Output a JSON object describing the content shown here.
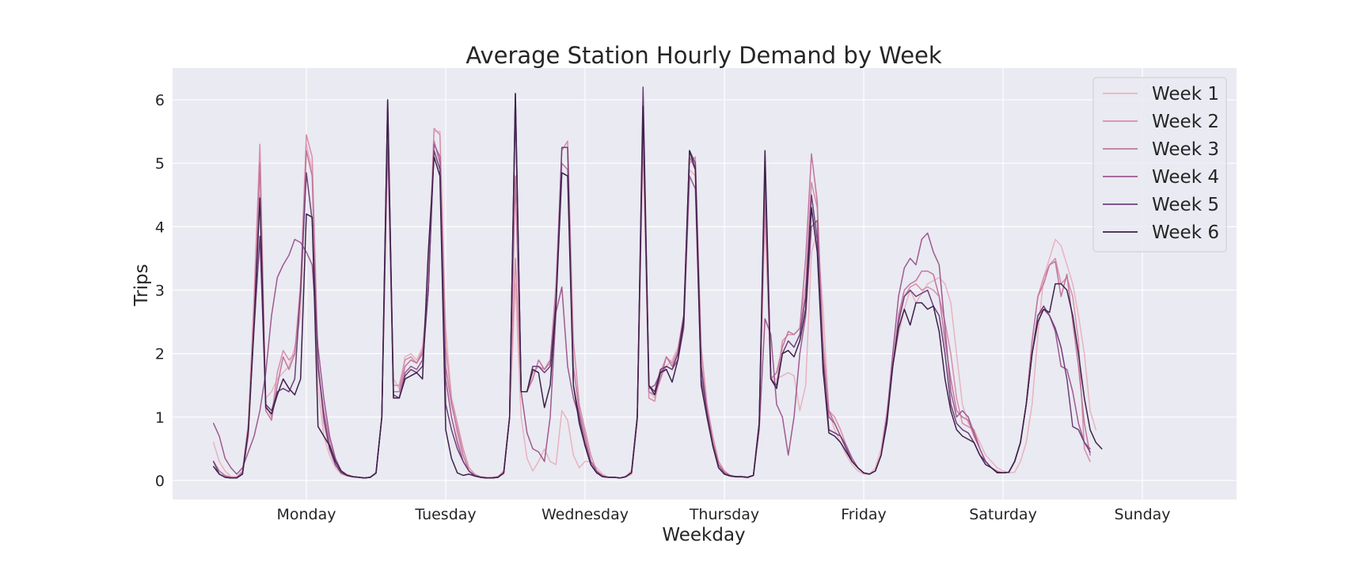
{
  "chart_data": {
    "type": "line",
    "title": "Average Station Hourly Demand by Week",
    "xlabel": "Weekday",
    "ylabel": "Trips",
    "x_tick_labels": [
      "Monday",
      "Tuesday",
      "Wednesday",
      "Thursday",
      "Friday",
      "Saturday",
      "Sunday"
    ],
    "y_ticks": [
      0,
      1,
      2,
      3,
      4,
      5,
      6
    ],
    "ylim": [
      -0.3,
      6.5
    ],
    "grid": true,
    "legend_position": "top-right",
    "background_color": "#eaeaf2",
    "hours_per_day": 24,
    "series": [
      {
        "name": "Week 1",
        "color": "#e8b3c0",
        "values": [
          0.6,
          0.3,
          0.15,
          0.06,
          0.06,
          0.12,
          0.8,
          2.5,
          4.5,
          1.3,
          1.4,
          1.6,
          1.7,
          1.8,
          2.1,
          2.6,
          5.3,
          4.9,
          1.5,
          0.7,
          0.4,
          0.2,
          0.1,
          0.07,
          0.05,
          0.05,
          0.04,
          0.05,
          0.1,
          1.0,
          5.6,
          1.6,
          1.45,
          1.95,
          2.0,
          1.9,
          2.1,
          3.1,
          5.5,
          5.5,
          2.4,
          1.3,
          0.7,
          0.3,
          0.15,
          0.08,
          0.05,
          0.04,
          0.04,
          0.05,
          0.1,
          1.0,
          3.1,
          1.0,
          0.35,
          0.15,
          0.3,
          0.5,
          0.3,
          0.25,
          1.1,
          0.95,
          0.4,
          0.2,
          0.3,
          0.3,
          0.2,
          0.1,
          0.05,
          0.05,
          0.04,
          0.05,
          0.1,
          0.9,
          5.5,
          1.4,
          1.3,
          1.6,
          1.8,
          1.9,
          2.1,
          2.6,
          4.9,
          4.8,
          1.9,
          1.2,
          0.6,
          0.2,
          0.1,
          0.07,
          0.05,
          0.05,
          0.04,
          0.08,
          0.9,
          4.2,
          1.6,
          1.6,
          1.65,
          1.7,
          1.65,
          1.1,
          1.5,
          3.6,
          3.9,
          2.7,
          1.1,
          0.8,
          0.6,
          0.4,
          0.25,
          0.15,
          0.1,
          0.1,
          0.2,
          0.5,
          1.1,
          1.8,
          2.3,
          2.7,
          3.0,
          2.8,
          2.95,
          3.1,
          3.15,
          3.2,
          3.1,
          2.8,
          2.0,
          1.2,
          0.9,
          0.8,
          0.6,
          0.4,
          0.3,
          0.2,
          0.15,
          0.12,
          0.13,
          0.3,
          0.6,
          1.2,
          2.3,
          3.2,
          3.5,
          3.8,
          3.7,
          3.4,
          3.1,
          2.6,
          2.0,
          1.1,
          0.8
        ]
      },
      {
        "name": "Week 2",
        "color": "#d88ea8",
        "values": [
          0.3,
          0.15,
          0.08,
          0.05,
          0.05,
          0.15,
          0.9,
          2.9,
          5.3,
          1.2,
          1.0,
          1.7,
          2.05,
          1.9,
          2.0,
          3.1,
          5.45,
          5.1,
          1.9,
          0.9,
          0.5,
          0.25,
          0.12,
          0.08,
          0.06,
          0.05,
          0.04,
          0.05,
          0.12,
          1.0,
          5.3,
          1.5,
          1.5,
          1.9,
          1.95,
          1.85,
          2.05,
          3.1,
          5.55,
          5.45,
          2.1,
          1.3,
          0.9,
          0.5,
          0.2,
          0.1,
          0.06,
          0.05,
          0.05,
          0.06,
          0.15,
          1.0,
          3.5,
          1.4,
          1.4,
          1.7,
          1.8,
          1.75,
          1.85,
          3.1,
          5.2,
          5.35,
          2.2,
          1.2,
          0.8,
          0.4,
          0.15,
          0.08,
          0.05,
          0.05,
          0.04,
          0.06,
          0.15,
          1.0,
          5.4,
          1.3,
          1.25,
          1.7,
          1.95,
          1.85,
          2.05,
          2.6,
          5.0,
          5.1,
          2.1,
          1.2,
          0.7,
          0.3,
          0.15,
          0.08,
          0.06,
          0.06,
          0.05,
          0.08,
          0.9,
          4.3,
          1.6,
          1.5,
          2.2,
          2.3,
          2.3,
          2.4,
          3.1,
          4.7,
          4.3,
          2.2,
          1.1,
          1.0,
          0.8,
          0.55,
          0.35,
          0.2,
          0.12,
          0.1,
          0.15,
          0.4,
          1.0,
          1.8,
          2.5,
          2.9,
          3.05,
          3.1,
          3.0,
          3.05,
          3.0,
          2.9,
          2.5,
          2.0,
          1.3,
          0.9,
          0.85,
          0.8,
          0.5,
          0.3,
          0.2,
          0.15,
          0.12,
          0.13,
          0.3,
          0.6,
          1.2,
          2.2,
          2.9,
          3.2,
          3.4,
          3.5,
          3.1,
          3.2,
          2.9,
          2.2,
          0.5,
          0.3
        ]
      },
      {
        "name": "Week 3",
        "color": "#c1769d",
        "values": [
          0.3,
          0.15,
          0.07,
          0.05,
          0.05,
          0.12,
          0.7,
          2.5,
          5.0,
          1.1,
          0.95,
          1.5,
          1.95,
          1.75,
          2.0,
          3.0,
          5.2,
          4.8,
          1.8,
          1.1,
          0.6,
          0.3,
          0.15,
          0.09,
          0.06,
          0.05,
          0.04,
          0.05,
          0.12,
          1.0,
          5.7,
          1.4,
          1.4,
          1.8,
          1.9,
          1.85,
          2.0,
          3.0,
          5.35,
          5.0,
          1.8,
          1.2,
          0.8,
          0.4,
          0.15,
          0.08,
          0.05,
          0.04,
          0.04,
          0.05,
          0.12,
          1.0,
          4.8,
          1.4,
          1.4,
          1.6,
          1.9,
          1.75,
          1.9,
          3.0,
          5.0,
          4.9,
          1.8,
          1.1,
          0.7,
          0.3,
          0.15,
          0.07,
          0.05,
          0.05,
          0.04,
          0.06,
          0.12,
          1.0,
          5.8,
          1.4,
          1.35,
          1.6,
          1.95,
          1.8,
          2.0,
          2.5,
          5.1,
          4.9,
          1.8,
          1.1,
          0.6,
          0.25,
          0.12,
          0.08,
          0.06,
          0.06,
          0.05,
          0.08,
          0.9,
          4.6,
          1.6,
          1.7,
          2.1,
          2.35,
          2.3,
          2.4,
          3.5,
          5.15,
          4.4,
          2.0,
          1.1,
          0.9,
          0.7,
          0.5,
          0.3,
          0.2,
          0.12,
          0.1,
          0.15,
          0.4,
          1.0,
          1.8,
          2.6,
          3.0,
          3.1,
          3.15,
          3.3,
          3.3,
          3.25,
          2.9,
          2.2,
          1.6,
          1.1,
          1.0,
          0.95,
          0.7,
          0.5,
          0.3,
          0.2,
          0.13,
          0.12,
          0.13,
          0.3,
          0.6,
          1.2,
          2.2,
          2.9,
          3.1,
          3.4,
          3.45,
          2.9,
          3.25,
          2.5,
          1.8,
          0.9,
          0.4
        ]
      },
      {
        "name": "Week 4",
        "color": "#9e5a8f",
        "values": [
          0.9,
          0.7,
          0.35,
          0.2,
          0.1,
          0.2,
          0.45,
          0.7,
          1.1,
          1.7,
          2.6,
          3.2,
          3.4,
          3.55,
          3.8,
          3.75,
          3.6,
          3.4,
          2.1,
          1.3,
          0.7,
          0.35,
          0.15,
          0.09,
          0.06,
          0.05,
          0.04,
          0.05,
          0.12,
          1.0,
          5.5,
          1.3,
          1.3,
          1.7,
          1.8,
          1.75,
          1.9,
          3.0,
          5.3,
          5.1,
          1.6,
          1.0,
          0.6,
          0.3,
          0.15,
          0.08,
          0.05,
          0.04,
          0.04,
          0.05,
          0.12,
          1.0,
          5.9,
          1.4,
          0.75,
          0.5,
          0.45,
          0.3,
          1.0,
          2.65,
          3.05,
          1.8,
          1.3,
          1.0,
          0.6,
          0.3,
          0.15,
          0.07,
          0.05,
          0.05,
          0.04,
          0.06,
          0.12,
          1.0,
          6.0,
          1.45,
          1.5,
          1.7,
          1.8,
          1.75,
          1.9,
          2.4,
          4.8,
          4.6,
          1.6,
          1.1,
          0.6,
          0.25,
          0.12,
          0.08,
          0.06,
          0.06,
          0.05,
          0.08,
          0.8,
          2.55,
          2.3,
          1.2,
          1.0,
          0.4,
          1.0,
          2.0,
          2.6,
          4.0,
          4.1,
          1.7,
          1.0,
          0.9,
          0.7,
          0.55,
          0.35,
          0.2,
          0.12,
          0.1,
          0.15,
          0.4,
          1.0,
          2.0,
          2.9,
          3.35,
          3.5,
          3.4,
          3.8,
          3.9,
          3.6,
          3.4,
          2.4,
          1.4,
          1.0,
          1.1,
          1.0,
          0.75,
          0.5,
          0.3,
          0.2,
          0.13,
          0.12,
          0.13,
          0.3,
          0.6,
          1.2,
          2.0,
          2.6,
          2.7,
          2.6,
          2.35,
          1.8,
          1.75,
          1.4,
          0.9,
          0.6,
          0.5
        ]
      },
      {
        "name": "Week 5",
        "color": "#6e3f7a",
        "values": [
          0.3,
          0.1,
          0.05,
          0.04,
          0.04,
          0.1,
          0.8,
          2.4,
          3.85,
          1.2,
          1.1,
          1.4,
          1.45,
          1.4,
          1.6,
          3.0,
          4.85,
          4.1,
          1.8,
          1.0,
          0.5,
          0.25,
          0.12,
          0.08,
          0.06,
          0.05,
          0.04,
          0.05,
          0.12,
          1.0,
          6.0,
          1.35,
          1.3,
          1.65,
          1.75,
          1.7,
          1.8,
          3.0,
          5.2,
          4.9,
          1.2,
          0.8,
          0.5,
          0.3,
          0.15,
          0.07,
          0.05,
          0.04,
          0.04,
          0.05,
          0.12,
          1.0,
          6.1,
          1.4,
          1.4,
          1.8,
          1.8,
          1.7,
          1.8,
          2.8,
          5.25,
          5.25,
          1.5,
          1.0,
          0.55,
          0.25,
          0.12,
          0.06,
          0.05,
          0.05,
          0.04,
          0.06,
          0.12,
          1.0,
          6.2,
          1.5,
          1.4,
          1.75,
          1.8,
          1.75,
          2.0,
          2.6,
          5.2,
          5.0,
          1.8,
          1.05,
          0.55,
          0.2,
          0.1,
          0.07,
          0.06,
          0.06,
          0.05,
          0.08,
          0.9,
          5.0,
          1.6,
          1.5,
          2.0,
          2.2,
          2.1,
          2.3,
          2.9,
          4.5,
          3.8,
          1.9,
          0.8,
          0.75,
          0.7,
          0.5,
          0.3,
          0.2,
          0.12,
          0.1,
          0.15,
          0.4,
          1.0,
          1.8,
          2.5,
          2.9,
          3.0,
          2.9,
          2.95,
          3.0,
          2.75,
          2.6,
          2.0,
          1.2,
          0.9,
          0.8,
          0.75,
          0.6,
          0.4,
          0.3,
          0.2,
          0.13,
          0.12,
          0.13,
          0.3,
          0.6,
          1.2,
          2.0,
          2.6,
          2.75,
          2.6,
          2.4,
          2.1,
          1.6,
          0.85,
          0.8,
          0.6,
          0.45
        ]
      },
      {
        "name": "Week 6",
        "color": "#3c2149",
        "values": [
          0.22,
          0.1,
          0.05,
          0.04,
          0.04,
          0.1,
          0.8,
          2.5,
          4.45,
          1.15,
          1.05,
          1.35,
          1.6,
          1.45,
          1.35,
          1.6,
          4.2,
          4.15,
          0.85,
          0.7,
          0.55,
          0.3,
          0.15,
          0.08,
          0.06,
          0.05,
          0.04,
          0.05,
          0.12,
          1.0,
          6.0,
          1.3,
          1.3,
          1.6,
          1.65,
          1.7,
          1.6,
          3.6,
          5.1,
          4.8,
          0.8,
          0.35,
          0.12,
          0.08,
          0.1,
          0.07,
          0.05,
          0.04,
          0.04,
          0.05,
          0.12,
          1.0,
          6.1,
          1.4,
          1.4,
          1.75,
          1.7,
          1.15,
          1.5,
          2.75,
          4.85,
          4.8,
          1.5,
          0.9,
          0.55,
          0.25,
          0.12,
          0.06,
          0.05,
          0.05,
          0.04,
          0.06,
          0.12,
          1.0,
          5.9,
          1.5,
          1.35,
          1.7,
          1.75,
          1.55,
          1.9,
          2.5,
          5.2,
          4.9,
          1.5,
          1.0,
          0.55,
          0.2,
          0.1,
          0.07,
          0.06,
          0.06,
          0.05,
          0.08,
          0.9,
          5.2,
          1.6,
          1.45,
          2.0,
          2.05,
          1.95,
          2.2,
          2.7,
          4.3,
          3.6,
          1.75,
          0.75,
          0.7,
          0.6,
          0.45,
          0.3,
          0.2,
          0.12,
          0.1,
          0.15,
          0.4,
          0.9,
          1.8,
          2.4,
          2.7,
          2.45,
          2.8,
          2.8,
          2.7,
          2.75,
          2.35,
          1.6,
          1.1,
          0.8,
          0.7,
          0.65,
          0.6,
          0.4,
          0.25,
          0.2,
          0.12,
          0.12,
          0.13,
          0.3,
          0.6,
          1.2,
          2.0,
          2.5,
          2.7,
          2.65,
          3.1,
          3.1,
          3.0,
          2.6,
          2.0,
          1.3,
          0.8,
          0.6,
          0.5
        ]
      }
    ]
  }
}
